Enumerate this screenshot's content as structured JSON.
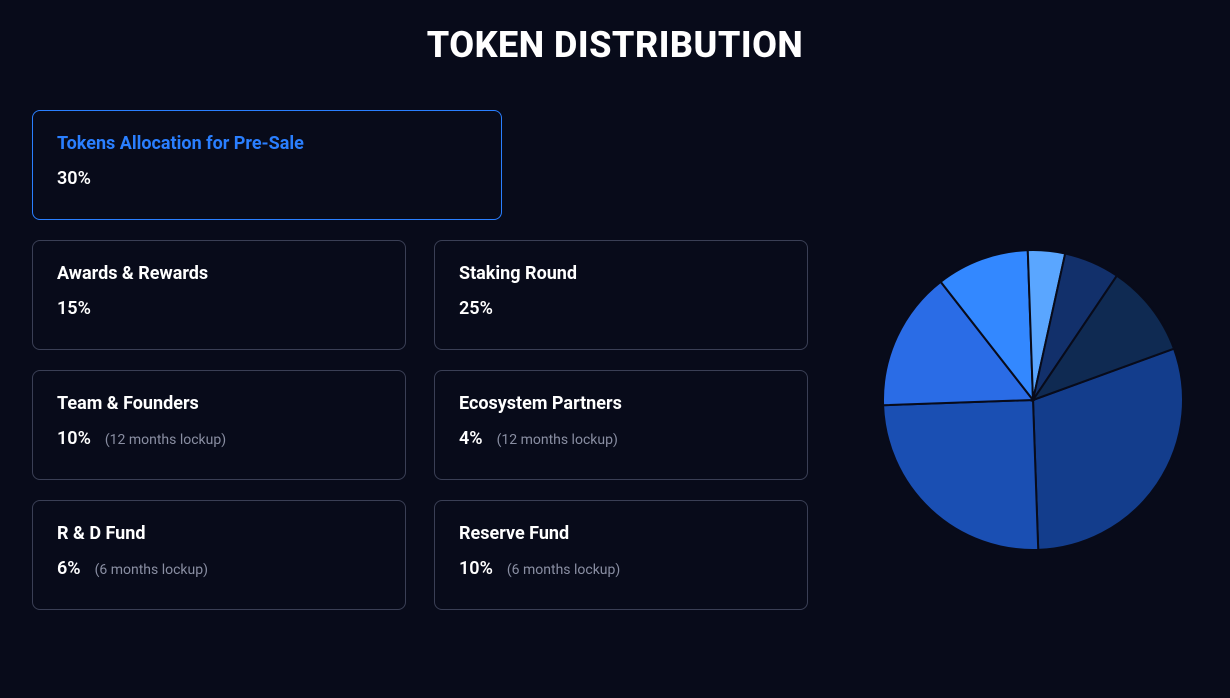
{
  "title": "TOKEN DISTRIBUTION",
  "colors": {
    "background": "#080b1a",
    "border_default": "#3a3f55",
    "border_active": "#2a7fff",
    "text_primary": "#ffffff",
    "text_muted": "#8a8fa3",
    "accent": "#2a7fff"
  },
  "cards": {
    "presale": {
      "title": "Tokens Allocation for Pre-Sale",
      "pct": "30%",
      "note": "",
      "active": true
    },
    "awards": {
      "title": "Awards & Rewards",
      "pct": "15%",
      "note": ""
    },
    "staking": {
      "title": "Staking Round",
      "pct": "25%",
      "note": ""
    },
    "team": {
      "title": "Team & Founders",
      "pct": "10%",
      "note": "(12 months lockup)"
    },
    "eco": {
      "title": "Ecosystem Partners",
      "pct": "4%",
      "note": "(12 months lockup)"
    },
    "rnd": {
      "title": "R & D Fund",
      "pct": "6%",
      "note": "(6 months lockup)"
    },
    "reserve": {
      "title": "Reserve Fund",
      "pct": "10%",
      "note": "(6 months lockup)"
    }
  },
  "pie": {
    "type": "pie",
    "radius": 150,
    "stroke": "#080b1a",
    "stroke_width": 2,
    "start_angle_deg": -20,
    "slices": [
      {
        "label": "Tokens Allocation for Pre-Sale",
        "value": 30,
        "color": "#133d8c"
      },
      {
        "label": "Staking Round",
        "value": 25,
        "color": "#1a4fb3"
      },
      {
        "label": "Awards & Rewards",
        "value": 15,
        "color": "#2a6ce6"
      },
      {
        "label": "Team & Founders",
        "value": 10,
        "color": "#3388ff"
      },
      {
        "label": "Ecosystem Partners",
        "value": 4,
        "color": "#5aa6ff"
      },
      {
        "label": "R & D Fund",
        "value": 6,
        "color": "#12306b"
      },
      {
        "label": "Reserve Fund",
        "value": 10,
        "color": "#0f2a52"
      }
    ]
  }
}
